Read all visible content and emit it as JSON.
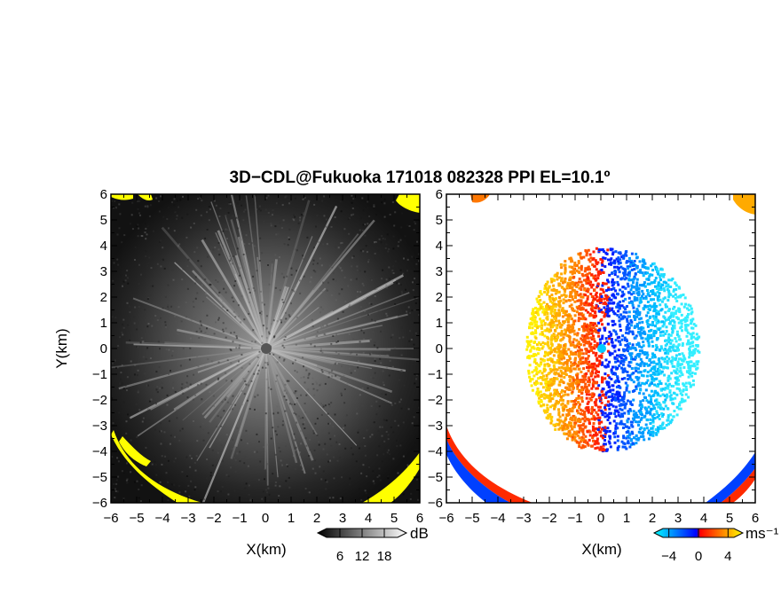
{
  "title": "3D−CDL@Fukuoka 171018 082328 PPI EL=10.1º",
  "chart_data": [
    {
      "type": "heatmap",
      "panel": "reflectivity",
      "xlabel": "X(km)",
      "ylabel": "Y(km)",
      "xlim": [
        -6,
        6
      ],
      "ylim": [
        -6,
        6
      ],
      "xticks": [
        "−6",
        "−5",
        "−4",
        "−3",
        "−2",
        "−1",
        "0",
        "1",
        "2",
        "3",
        "4",
        "5",
        "6"
      ],
      "yticks": [
        "−6",
        "−5",
        "−4",
        "−3",
        "−2",
        "−1",
        "0",
        "1",
        "2",
        "3",
        "4",
        "5",
        "6"
      ],
      "colorbar": {
        "unit": "dB",
        "ticks": [
          "6",
          "12",
          "18"
        ],
        "min": 0,
        "max": 24
      },
      "colors": {
        "low": "#000000",
        "high": "#ffffff",
        "saturated": "#ffff00"
      },
      "radar_center": [
        0,
        0
      ]
    },
    {
      "type": "heatmap",
      "panel": "doppler_velocity",
      "xlabel": "X(km)",
      "ylabel": "",
      "xlim": [
        -6,
        6
      ],
      "ylim": [
        -6,
        6
      ],
      "xticks": [
        "−6",
        "−5",
        "−4",
        "−3",
        "−2",
        "−1",
        "0",
        "1",
        "2",
        "3",
        "4",
        "5",
        "6"
      ],
      "yticks": [
        "−6",
        "−5",
        "−4",
        "−3",
        "−2",
        "−1",
        "0",
        "1",
        "2",
        "3",
        "4",
        "5",
        "6"
      ],
      "colorbar": {
        "unit": "ms⁻¹",
        "ticks": [
          "−4",
          "0",
          "4"
        ],
        "min": -6,
        "max": 6
      },
      "colors": {
        "negative": [
          "#00ffff",
          "#0000ff"
        ],
        "positive": [
          "#ff0000",
          "#ffff00"
        ]
      },
      "radar_center": [
        0,
        0
      ]
    }
  ]
}
